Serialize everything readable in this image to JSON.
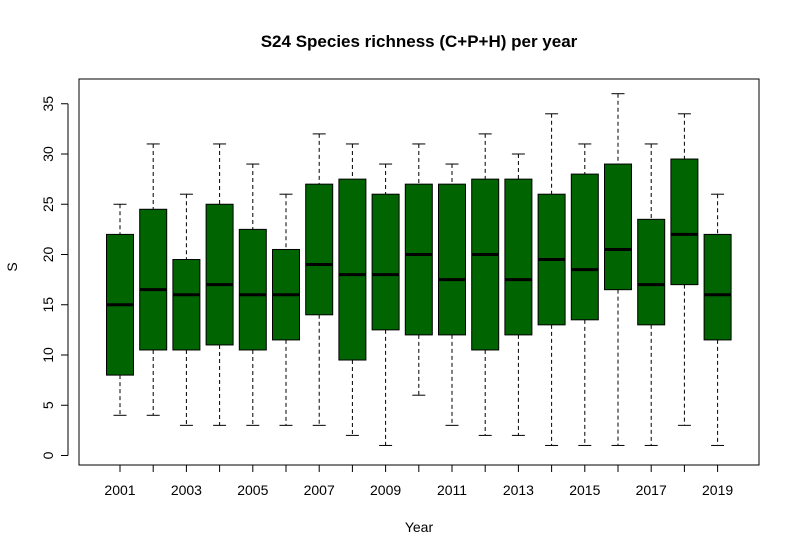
{
  "chart_data": {
    "type": "boxplot",
    "title": "S24 Species richness (C+P+H) per year",
    "xlabel": "Year",
    "ylabel": "S",
    "ylim": [
      0,
      36
    ],
    "yticks": [
      "0",
      "5",
      "10",
      "15",
      "20",
      "25",
      "30",
      "35"
    ],
    "categories": [
      "2001",
      "2002",
      "2003",
      "2004",
      "2005",
      "2006",
      "2007",
      "2008",
      "2009",
      "2010",
      "2011",
      "2012",
      "2013",
      "2014",
      "2015",
      "2016",
      "2017",
      "2018",
      "2019"
    ],
    "xtick_labels": [
      "2001",
      "2003",
      "2005",
      "2007",
      "2009",
      "2011",
      "2013",
      "2015",
      "2017",
      "2019"
    ],
    "box_color": "#006400",
    "grid": false,
    "boxes": [
      {
        "year": "2001",
        "min": 4,
        "q1": 8,
        "median": 15,
        "q3": 22,
        "max": 25
      },
      {
        "year": "2002",
        "min": 4,
        "q1": 10.5,
        "median": 16.5,
        "q3": 24.5,
        "max": 31
      },
      {
        "year": "2003",
        "min": 3,
        "q1": 10.5,
        "median": 16,
        "q3": 19.5,
        "max": 26
      },
      {
        "year": "2004",
        "min": 3,
        "q1": 11,
        "median": 17,
        "q3": 25,
        "max": 31
      },
      {
        "year": "2005",
        "min": 3,
        "q1": 10.5,
        "median": 16,
        "q3": 22.5,
        "max": 29
      },
      {
        "year": "2006",
        "min": 3,
        "q1": 11.5,
        "median": 16,
        "q3": 20.5,
        "max": 26
      },
      {
        "year": "2007",
        "min": 3,
        "q1": 14,
        "median": 19,
        "q3": 27,
        "max": 32
      },
      {
        "year": "2008",
        "min": 2,
        "q1": 9.5,
        "median": 18,
        "q3": 27.5,
        "max": 31
      },
      {
        "year": "2009",
        "min": 1,
        "q1": 12.5,
        "median": 18,
        "q3": 26,
        "max": 29
      },
      {
        "year": "2010",
        "min": 6,
        "q1": 12,
        "median": 20,
        "q3": 27,
        "max": 31
      },
      {
        "year": "2011",
        "min": 3,
        "q1": 12,
        "median": 17.5,
        "q3": 27,
        "max": 29
      },
      {
        "year": "2012",
        "min": 2,
        "q1": 10.5,
        "median": 20,
        "q3": 27.5,
        "max": 32
      },
      {
        "year": "2013",
        "min": 2,
        "q1": 12,
        "median": 17.5,
        "q3": 27.5,
        "max": 30
      },
      {
        "year": "2014",
        "min": 1,
        "q1": 13,
        "median": 19.5,
        "q3": 26,
        "max": 34
      },
      {
        "year": "2015",
        "min": 1,
        "q1": 13.5,
        "median": 18.5,
        "q3": 28,
        "max": 31
      },
      {
        "year": "2016",
        "min": 1,
        "q1": 16.5,
        "median": 20.5,
        "q3": 29,
        "max": 36
      },
      {
        "year": "2017",
        "min": 1,
        "q1": 13,
        "median": 17,
        "q3": 23.5,
        "max": 31
      },
      {
        "year": "2018",
        "min": 3,
        "q1": 17,
        "median": 22,
        "q3": 29.5,
        "max": 34
      },
      {
        "year": "2019",
        "min": 1,
        "q1": 11.5,
        "median": 16,
        "q3": 22,
        "max": 26
      }
    ]
  }
}
